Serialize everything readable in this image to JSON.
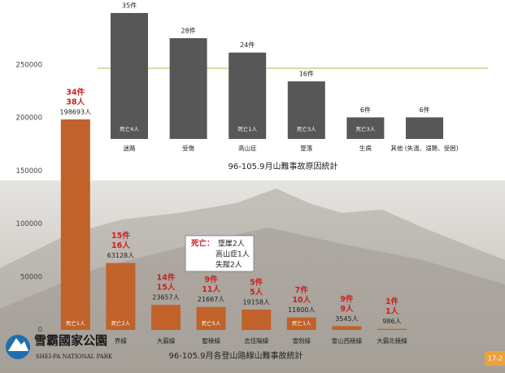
{
  "chart_data": [
    {
      "type": "bar",
      "title": "96-105.9月各登山路線山難事故統計",
      "categories": [
        null,
        "界線",
        "大霸線",
        "聖稜線",
        "志佳陽線",
        "雪劍線",
        "雪山西稜線",
        "大霸北稜線"
      ],
      "values": [
        198693,
        63128,
        23657,
        21667,
        19158,
        11800,
        3545,
        986
      ],
      "value_labels": [
        "198693人",
        "63128人",
        "23657人",
        "21667人",
        "19158人",
        "11800人",
        "3545人",
        "986人"
      ],
      "incidents": [
        "34件",
        "15件",
        "14件",
        "9件",
        "5件",
        "7件",
        "9件",
        "1件"
      ],
      "people": [
        "38人",
        "16人",
        "15人",
        "11人",
        "5人",
        "10人",
        "9人",
        "1人"
      ],
      "deaths": [
        "死亡1人",
        "死亡2人",
        null,
        "死亡5人",
        null,
        "死亡1人",
        null,
        null
      ],
      "callout": {
        "head": "死亡：",
        "lines": [
          "墜崖2人",
          "高山症1人",
          "失蹤2人"
        ]
      },
      "color": "#c0622a",
      "ylim": [
        0,
        250000
      ],
      "yticks": [
        0,
        50000,
        100000,
        150000,
        200000,
        250000
      ],
      "grid": false
    },
    {
      "type": "bar",
      "title": "96-105.9月山難事故原因統計",
      "categories": [
        "迷路",
        "受傷",
        "高山症",
        "墜落",
        "生病",
        "其他 (失溫、溺斃、受困)"
      ],
      "values": [
        35,
        28,
        24,
        16,
        6,
        6
      ],
      "value_labels": [
        "35件",
        "28件",
        "24件",
        "16件",
        "6件",
        "6件"
      ],
      "deaths": [
        "死亡4人",
        null,
        "死亡1人",
        "死亡3人",
        "死亡3人",
        null
      ],
      "color": "#575757"
    }
  ],
  "logo": {
    "name": "雪霸國家公園",
    "english": "SHEI-PA NATIONAL PARK"
  },
  "page_number": "17-2"
}
